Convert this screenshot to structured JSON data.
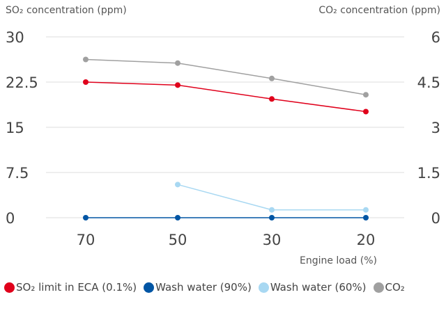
{
  "chart_data": {
    "type": "line",
    "left_axis_label": "SO₂ concentration (ppm)",
    "right_axis_label": "CO₂ concentration (ppm)",
    "xlabel": "Engine load (%)",
    "categories": [
      "70",
      "50",
      "30",
      "20"
    ],
    "left_ticks": [
      "0",
      "7.5",
      "15",
      "22.5",
      "30"
    ],
    "right_ticks": [
      "0",
      "1.5",
      "3",
      "4.5",
      "6"
    ],
    "ylim_left": [
      0,
      30
    ],
    "ylim_right": [
      0,
      6
    ],
    "grid": true,
    "legend_position": "bottom",
    "series": [
      {
        "name": "SO₂ limit in ECA (0.1%)",
        "axis": "left",
        "color": "#e0001b",
        "values": [
          22.5,
          22.0,
          19.7,
          17.6
        ]
      },
      {
        "name": "Wash water (90%)",
        "axis": "left",
        "color": "#0055a4",
        "values": [
          0,
          0,
          0,
          0
        ]
      },
      {
        "name": "Wash water (60%)",
        "axis": "left",
        "color": "#a8d8f2",
        "values": [
          null,
          5.5,
          1.3,
          1.3
        ]
      },
      {
        "name": "CO₂",
        "axis": "right",
        "color": "#a0a0a0",
        "values": [
          5.25,
          5.13,
          4.62,
          4.08
        ]
      }
    ]
  }
}
